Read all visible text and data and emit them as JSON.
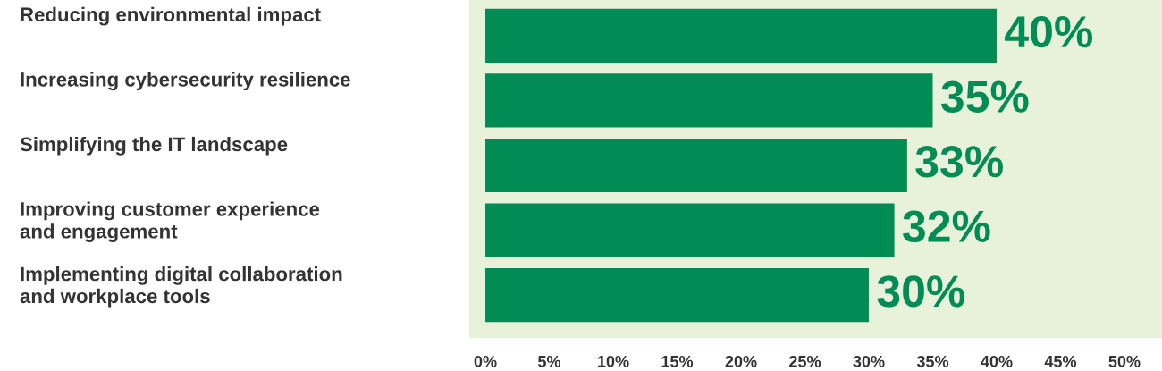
{
  "chart_data": {
    "type": "bar",
    "orientation": "horizontal",
    "categories": [
      "Reducing environmental impact",
      "Increasing cybersecurity resilience",
      "Simplifying the IT landscape",
      "Improving customer experience\nand engagement",
      "Implementing digital collaboration\nand workplace tools"
    ],
    "values": [
      40,
      35,
      33,
      32,
      30
    ],
    "color": "#008c54",
    "value_labels": [
      "40%",
      "35%",
      "33%",
      "32%",
      "30%"
    ],
    "xlim": [
      -1.26,
      52.94
    ],
    "xticks": [
      {
        "value": 0,
        "label": "0%"
      },
      {
        "value": 5,
        "label": "5%"
      },
      {
        "value": 10,
        "label": "10%"
      },
      {
        "value": 15,
        "label": "15%"
      },
      {
        "value": 20,
        "label": "20%"
      },
      {
        "value": 25,
        "label": "25%"
      },
      {
        "value": 30,
        "label": "30%"
      },
      {
        "value": 35,
        "label": "35%"
      },
      {
        "value": 40,
        "label": "40%"
      },
      {
        "value": 45,
        "label": "45%"
      },
      {
        "value": 50,
        "label": "50%"
      }
    ],
    "grid": false
  }
}
